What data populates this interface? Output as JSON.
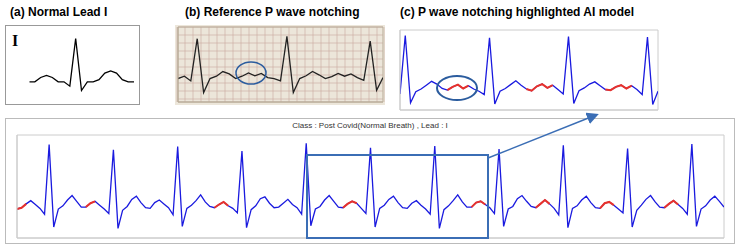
{
  "chart_data": [
    {
      "type": "line",
      "title": "(a) Normal Lead I",
      "annotation": "I",
      "color": "#000000",
      "tick_labels": false,
      "xlim": [
        0,
        18
      ],
      "ylim": [
        -0.35,
        1.15
      ],
      "values": [
        0,
        0,
        0.1,
        0.15,
        0.1,
        0,
        0,
        -0.1,
        1.0,
        -0.2,
        0,
        0,
        0.05,
        0.2,
        0.25,
        0.2,
        0.05,
        0,
        0
      ]
    },
    {
      "type": "line",
      "title": "(b) Reference P wave notching",
      "color": "#222222",
      "grid": true,
      "tick_labels": false,
      "xlim": [
        0,
        32
      ],
      "ylim": [
        -0.5,
        1.1
      ],
      "values": [
        0.0,
        0.05,
        -0.05,
        0.85,
        -0.3,
        0.0,
        0.05,
        0.15,
        0.1,
        0.0,
        0.05,
        0.12,
        0.06,
        0.11,
        0.02,
        0.0,
        -0.05,
        0.9,
        -0.3,
        0.0,
        0.06,
        0.15,
        0.08,
        0.0,
        0.04,
        0.11,
        0.05,
        0.1,
        0.02,
        -0.04,
        0.8,
        -0.25,
        0.02
      ]
    },
    {
      "type": "line",
      "title": "(c) P wave notching highlighted AI model",
      "color": "#1a1adf",
      "highlight_color": "#e8322b",
      "tick_labels": false,
      "xlim": [
        0,
        49
      ],
      "ylim": [
        -0.35,
        1.1
      ],
      "highlight_segments": [
        [
          9,
          13
        ],
        [
          24,
          29
        ],
        [
          39,
          44
        ]
      ],
      "values": [
        -0.06,
        1.0,
        -0.22,
        -0.02,
        0.03,
        0.1,
        0.17,
        0.12,
        0.04,
        0.01,
        0.07,
        0.11,
        0.04,
        0.09,
        0.03,
        -0.01,
        -0.07,
        0.96,
        -0.24,
        -0.01,
        0.04,
        0.11,
        0.18,
        0.1,
        0.03,
        0.0,
        0.08,
        0.12,
        0.05,
        0.1,
        0.02,
        -0.06,
        0.98,
        -0.23,
        0.0,
        0.05,
        0.12,
        0.16,
        0.09,
        0.02,
        0.01,
        0.07,
        0.1,
        0.04,
        0.09,
        0.02,
        -0.07,
        0.97,
        -0.25,
        -0.01
      ]
    },
    {
      "type": "line",
      "title": "Class : Post Covid(Normal Breath) , Lead : I",
      "color": "#1a1adf",
      "highlight_color": "#e8322b",
      "tick_labels": false,
      "xlim": [
        0,
        154
      ],
      "ylim": [
        -0.45,
        1.15
      ],
      "highlight_segments": [
        [
          0,
          2
        ],
        [
          15,
          17
        ],
        [
          43,
          46
        ],
        [
          71,
          74
        ],
        [
          99,
          102
        ],
        [
          113,
          116
        ],
        [
          127,
          130
        ],
        [
          141,
          144
        ]
      ],
      "values": [
        0.0,
        0.02,
        0.08,
        0.13,
        0.07,
        0.01,
        -0.08,
        1.0,
        -0.28,
        0.0,
        0.05,
        0.14,
        0.21,
        0.12,
        0.03,
        0.03,
        0.09,
        0.12,
        0.06,
        0.0,
        -0.07,
        0.92,
        -0.3,
        -0.02,
        0.04,
        0.15,
        0.2,
        0.1,
        0.02,
        0.01,
        0.1,
        0.14,
        0.08,
        0.02,
        -0.09,
        0.97,
        -0.27,
        0.01,
        0.06,
        0.13,
        0.22,
        0.11,
        0.04,
        0.02,
        0.07,
        0.11,
        0.05,
        0.01,
        -0.06,
        0.9,
        -0.29,
        -0.01,
        0.05,
        0.16,
        0.19,
        0.09,
        0.02,
        0.03,
        0.09,
        0.15,
        0.07,
        0.02,
        -0.08,
        1.02,
        -0.26,
        0.0,
        0.04,
        0.14,
        0.21,
        0.12,
        0.03,
        0.02,
        0.08,
        0.12,
        0.09,
        0.01,
        -0.07,
        0.95,
        -0.28,
        0.01,
        0.06,
        0.15,
        0.2,
        0.1,
        0.02,
        0.01,
        0.09,
        0.13,
        0.06,
        0.0,
        -0.08,
        0.98,
        -0.3,
        -0.01,
        0.05,
        0.13,
        0.22,
        0.11,
        0.03,
        0.03,
        0.1,
        0.12,
        0.07,
        0.02,
        -0.07,
        0.93,
        -0.27,
        0.0,
        0.04,
        0.16,
        0.21,
        0.12,
        0.04,
        0.02,
        0.08,
        0.14,
        0.08,
        0.01,
        -0.09,
        0.99,
        -0.29,
        0.01,
        0.05,
        0.14,
        0.2,
        0.1,
        0.02,
        0.01,
        0.09,
        0.11,
        0.06,
        0.0,
        -0.06,
        0.94,
        -0.28,
        -0.02,
        0.06,
        0.15,
        0.21,
        0.11,
        0.03,
        0.02,
        0.08,
        0.13,
        0.07,
        0.01,
        -0.08,
        1.01,
        -0.27,
        0.0,
        0.05,
        0.14,
        0.2,
        0.12,
        0.03
      ]
    }
  ]
}
